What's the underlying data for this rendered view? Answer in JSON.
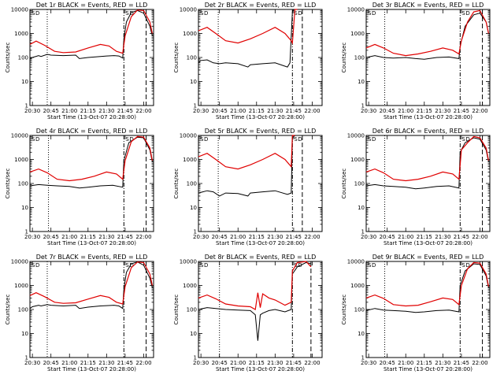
{
  "chart_data": [
    {
      "type": "line",
      "title": "Det 1r BLACK = Events, RED = LLD",
      "xlabel": "Start Time (13-Oct-07 20:28:00)",
      "ylabel": "Counts/sec",
      "log_y": true,
      "ylim": [
        1,
        10000
      ],
      "y_ticks": [
        "1",
        "10",
        "100",
        "1000",
        "10000"
      ],
      "x_ticks": [
        "20:30",
        "20:45",
        "21:00",
        "21:15",
        "21:30",
        "21:45",
        "22:00"
      ],
      "x_range": [
        "20:28",
        "22:08"
      ],
      "events_x": [
        "20:28",
        "20:30",
        "20:35",
        "20:37",
        "20:42",
        "20:45",
        "20:55",
        "21:05",
        "21:08",
        "21:15",
        "21:25",
        "21:30",
        "21:36",
        "21:40",
        "21:43",
        "21:44",
        "21:46",
        "21:50",
        "21:55",
        "22:00",
        "22:05",
        "22:07"
      ],
      "events_y": [
        90,
        100,
        120,
        110,
        135,
        125,
        120,
        125,
        90,
        100,
        110,
        115,
        120,
        115,
        95,
        600,
        3000,
        7500,
        9000,
        7000,
        2000,
        800
      ],
      "lld_x": [
        "20:28",
        "20:33",
        "20:40",
        "20:48",
        "20:55",
        "21:05",
        "21:15",
        "21:25",
        "21:32",
        "21:38",
        "21:43",
        "21:45",
        "21:50",
        "21:55",
        "22:00",
        "22:05",
        "22:07"
      ],
      "lld_y": [
        350,
        480,
        320,
        180,
        160,
        170,
        250,
        350,
        300,
        180,
        150,
        800,
        5000,
        9500,
        9000,
        3000,
        1000
      ],
      "dotted_lines_x": [
        "20:42"
      ],
      "dashdot_lines_x": [
        "21:44"
      ],
      "dashed_lines_x": [
        "22:02"
      ],
      "markers": [
        "S",
        "D"
      ]
    },
    {
      "type": "line",
      "title": "Det 2r BLACK = Events, RED = LLD",
      "xlabel": "Start Time (13-Oct-07 20:28:00)",
      "ylabel": "Counts/sec",
      "log_y": true,
      "ylim": [
        1,
        10000
      ],
      "y_ticks": [
        "1",
        "10",
        "100",
        "1000",
        "10000"
      ],
      "x_ticks": [
        "20:30",
        "20:45",
        "21:00",
        "21:15",
        "21:30",
        "21:45",
        "22:00"
      ],
      "x_range": [
        "20:28",
        "22:08"
      ],
      "events_x": [
        "20:28",
        "20:30",
        "20:35",
        "20:40",
        "20:45",
        "20:50",
        "21:00",
        "21:08",
        "21:10",
        "21:20",
        "21:30",
        "21:40",
        "21:42",
        "21:44",
        "21:45",
        "21:47"
      ],
      "events_y": [
        60,
        75,
        80,
        60,
        55,
        60,
        55,
        40,
        50,
        55,
        60,
        40,
        60,
        8000,
        10000,
        10000
      ],
      "lld_x": [
        "20:28",
        "20:35",
        "20:42",
        "20:50",
        "21:00",
        "21:10",
        "21:20",
        "21:30",
        "21:38",
        "21:43",
        "21:44",
        "21:46",
        "21:48"
      ],
      "lld_y": [
        1300,
        1800,
        1000,
        500,
        400,
        600,
        1000,
        1800,
        1000,
        500,
        400,
        10000,
        10000
      ],
      "dotted_lines_x": [
        "20:44"
      ],
      "dashdot_lines_x": [
        "21:44"
      ],
      "dashed_lines_x": [
        "21:52"
      ],
      "markers": [
        "S",
        "D"
      ]
    },
    {
      "type": "line",
      "title": "Det 3r BLACK = Events, RED = LLD",
      "xlabel": "Start Time (13-Oct-07 20:28:00)",
      "ylabel": "Counts/sec",
      "log_y": true,
      "ylim": [
        1,
        10000
      ],
      "y_ticks": [
        "1",
        "10",
        "100",
        "1000",
        "10000"
      ],
      "x_ticks": [
        "20:30",
        "20:45",
        "21:00",
        "21:15",
        "21:30",
        "21:45",
        "22:00"
      ],
      "x_range": [
        "20:28",
        "22:08"
      ],
      "events_x": [
        "20:28",
        "20:35",
        "20:42",
        "20:50",
        "21:00",
        "21:08",
        "21:15",
        "21:25",
        "21:35",
        "21:43",
        "21:44",
        "21:48",
        "21:55",
        "22:00",
        "22:05",
        "22:07"
      ],
      "events_y": [
        100,
        120,
        100,
        95,
        100,
        90,
        85,
        100,
        105,
        90,
        300,
        2000,
        6000,
        7000,
        3000,
        1000
      ],
      "lld_x": [
        "20:28",
        "20:35",
        "20:42",
        "20:50",
        "21:00",
        "21:10",
        "21:20",
        "21:30",
        "21:38",
        "21:43",
        "21:45",
        "21:50",
        "21:55",
        "22:00",
        "22:05",
        "22:07"
      ],
      "lld_y": [
        250,
        350,
        250,
        150,
        120,
        140,
        180,
        250,
        200,
        140,
        500,
        3000,
        8000,
        9000,
        3000,
        1000
      ],
      "dotted_lines_x": [
        "20:43"
      ],
      "dashdot_lines_x": [
        "21:44"
      ],
      "dashed_lines_x": [
        "22:02"
      ],
      "markers": [
        "S",
        "D"
      ]
    },
    {
      "type": "line",
      "title": "Det 4r BLACK = Events, RED = LLD",
      "xlabel": "Start Time (13-Oct-07 20:28:00)",
      "ylabel": "Counts/sec",
      "log_y": true,
      "ylim": [
        1,
        10000
      ],
      "y_ticks": [
        "1",
        "10",
        "100",
        "1000",
        "10000"
      ],
      "x_ticks": [
        "20:30",
        "20:45",
        "21:00",
        "21:15",
        "21:30",
        "21:45",
        "22:00"
      ],
      "x_range": [
        "20:28",
        "22:08"
      ],
      "events_x": [
        "20:28",
        "20:35",
        "20:42",
        "20:50",
        "21:00",
        "21:08",
        "21:15",
        "21:25",
        "21:35",
        "21:43",
        "21:44",
        "21:48",
        "21:55",
        "22:00",
        "22:05",
        "22:07"
      ],
      "events_y": [
        80,
        90,
        85,
        80,
        75,
        65,
        70,
        80,
        85,
        70,
        900,
        5000,
        8500,
        8000,
        2500,
        800
      ],
      "lld_x": [
        "20:28",
        "20:35",
        "20:42",
        "20:50",
        "21:00",
        "21:10",
        "21:20",
        "21:30",
        "21:38",
        "21:43",
        "21:45",
        "21:50",
        "21:55",
        "22:00",
        "22:05",
        "22:07"
      ],
      "lld_y": [
        300,
        400,
        280,
        150,
        130,
        150,
        200,
        300,
        250,
        150,
        900,
        5500,
        9000,
        8500,
        3000,
        900
      ],
      "dotted_lines_x": [
        "20:43"
      ],
      "dashdot_lines_x": [
        "21:44"
      ],
      "dashed_lines_x": [
        "22:02"
      ],
      "markers": [
        "S",
        "D"
      ]
    },
    {
      "type": "line",
      "title": "Det 5r BLACK = Events, RED = LLD",
      "xlabel": "Start Time (13-Oct-07 20:28:00)",
      "ylabel": "Counts/sec",
      "log_y": true,
      "ylim": [
        1,
        10000
      ],
      "y_ticks": [
        "1",
        "10",
        "100",
        "1000",
        "10000"
      ],
      "x_ticks": [
        "20:30",
        "20:45",
        "21:00",
        "21:15",
        "21:30",
        "21:45",
        "22:00"
      ],
      "x_range": [
        "20:28",
        "22:08"
      ],
      "events_x": [
        "20:28",
        "20:35",
        "20:40",
        "20:45",
        "20:50",
        "21:00",
        "21:08",
        "21:10",
        "21:20",
        "21:30",
        "21:40",
        "21:43",
        "21:44",
        "21:46"
      ],
      "events_y": [
        40,
        50,
        45,
        30,
        40,
        38,
        30,
        40,
        45,
        50,
        35,
        40,
        8000,
        10000
      ],
      "lld_x": [
        "20:28",
        "20:35",
        "20:42",
        "20:50",
        "21:00",
        "21:10",
        "21:20",
        "21:30",
        "21:38",
        "21:43",
        "21:44",
        "21:46"
      ],
      "lld_y": [
        1300,
        1800,
        1000,
        500,
        400,
        600,
        1000,
        1800,
        1000,
        500,
        10000,
        10000
      ],
      "dotted_lines_x": [
        "20:44"
      ],
      "dashdot_lines_x": [
        "21:44"
      ],
      "dashed_lines_x": [
        "21:52"
      ],
      "markers": [
        "S",
        "D"
      ]
    },
    {
      "type": "line",
      "title": "Det 6r BLACK = Events, RED = LLD",
      "xlabel": "Start Time (13-Oct-07 20:28:00)",
      "ylabel": "Counts/sec",
      "log_y": true,
      "ylim": [
        1,
        10000
      ],
      "y_ticks": [
        "1",
        "10",
        "100",
        "1000",
        "10000"
      ],
      "x_ticks": [
        "20:30",
        "20:45",
        "21:00",
        "21:15",
        "21:30",
        "21:45",
        "22:00"
      ],
      "x_range": [
        "20:28",
        "22:08"
      ],
      "events_x": [
        "20:28",
        "20:35",
        "20:42",
        "20:50",
        "21:00",
        "21:08",
        "21:15",
        "21:25",
        "21:35",
        "21:43",
        "21:44",
        "21:48",
        "21:55",
        "22:00",
        "22:05",
        "22:07"
      ],
      "events_y": [
        80,
        90,
        80,
        75,
        70,
        60,
        65,
        75,
        80,
        65,
        2000,
        5000,
        8000,
        7000,
        2500,
        800
      ],
      "lld_x": [
        "20:28",
        "20:35",
        "20:42",
        "20:50",
        "21:00",
        "21:10",
        "21:20",
        "21:30",
        "21:38",
        "21:43",
        "21:45",
        "21:50",
        "21:55",
        "22:00",
        "22:05",
        "22:07"
      ],
      "lld_y": [
        300,
        400,
        280,
        150,
        130,
        150,
        200,
        300,
        250,
        150,
        2500,
        5000,
        9000,
        8000,
        3000,
        900
      ],
      "dotted_lines_x": [
        "20:43"
      ],
      "dashdot_lines_x": [
        "21:44"
      ],
      "dashed_lines_x": [
        "22:02"
      ],
      "markers": [
        "S",
        "D"
      ]
    },
    {
      "type": "line",
      "title": "Det 7r BLACK = Events, RED = LLD",
      "xlabel": "Start Time (13-Oct-07 20:28:00)",
      "ylabel": "Counts/sec",
      "log_y": true,
      "ylim": [
        1,
        10000
      ],
      "y_ticks": [
        "1",
        "10",
        "100",
        "1000",
        "10000"
      ],
      "x_ticks": [
        "20:30",
        "20:45",
        "21:00",
        "21:15",
        "21:30",
        "21:45",
        "22:00"
      ],
      "x_range": [
        "20:28",
        "22:08"
      ],
      "events_x": [
        "20:28",
        "20:30",
        "20:35",
        "20:37",
        "20:42",
        "20:45",
        "20:55",
        "21:05",
        "21:08",
        "21:15",
        "21:25",
        "21:30",
        "21:36",
        "21:40",
        "21:43",
        "21:44",
        "21:46",
        "21:50",
        "21:55",
        "22:00",
        "22:05",
        "22:07"
      ],
      "events_y": [
        110,
        130,
        150,
        140,
        160,
        150,
        140,
        150,
        110,
        125,
        140,
        145,
        150,
        140,
        110,
        700,
        3500,
        8000,
        9500,
        7000,
        2000,
        800
      ],
      "lld_x": [
        "20:28",
        "20:33",
        "20:40",
        "20:48",
        "20:55",
        "21:05",
        "21:15",
        "21:25",
        "21:32",
        "21:38",
        "21:43",
        "21:45",
        "21:50",
        "21:55",
        "22:00",
        "22:05",
        "22:07"
      ],
      "lld_y": [
        380,
        500,
        340,
        200,
        180,
        190,
        270,
        380,
        320,
        200,
        170,
        900,
        5500,
        9500,
        9000,
        3000,
        1000
      ],
      "dotted_lines_x": [
        "20:42"
      ],
      "dashdot_lines_x": [
        "21:44"
      ],
      "dashed_lines_x": [
        "22:02"
      ],
      "markers": [
        "S",
        "D"
      ]
    },
    {
      "type": "line",
      "title": "Det 8r BLACK = Events, RED = LLD",
      "xlabel": "Start Time (13-Oct-07 20:28:00)",
      "ylabel": "Counts/sec",
      "log_y": true,
      "ylim": [
        1,
        10000
      ],
      "y_ticks": [
        "1",
        "10",
        "100",
        "1000",
        "10000"
      ],
      "x_ticks": [
        "20:30",
        "20:45",
        "21:00",
        "21:15",
        "21:30",
        "21:45",
        "22:00"
      ],
      "x_range": [
        "20:28",
        "22:08"
      ],
      "events_x": [
        "20:28",
        "20:35",
        "20:42",
        "20:50",
        "21:00",
        "21:10",
        "21:14",
        "21:16",
        "21:18",
        "21:20",
        "21:25",
        "21:30",
        "21:38",
        "21:43",
        "21:44",
        "21:48",
        "21:55",
        "21:59"
      ],
      "events_y": [
        100,
        120,
        110,
        100,
        95,
        90,
        60,
        5,
        60,
        70,
        90,
        100,
        80,
        100,
        3000,
        6000,
        9000,
        8000
      ],
      "lld_x": [
        "20:28",
        "20:35",
        "20:42",
        "20:50",
        "21:00",
        "21:10",
        "21:14",
        "21:16",
        "21:18",
        "21:20",
        "21:25",
        "21:30",
        "21:38",
        "21:43",
        "21:44",
        "21:48",
        "21:55",
        "21:59"
      ],
      "lld_y": [
        300,
        400,
        280,
        170,
        140,
        130,
        100,
        500,
        120,
        450,
        300,
        250,
        150,
        200,
        4000,
        9000,
        10000,
        6000
      ],
      "dotted_lines_x": [
        "20:45"
      ],
      "dashdot_lines_x": [
        "21:44"
      ],
      "dashed_lines_x": [
        "21:59"
      ],
      "markers": [
        "S",
        "D"
      ]
    },
    {
      "type": "line",
      "title": "Det 9r BLACK = Events, RED = LLD",
      "xlabel": "Start Time (13-Oct-07 20:28:00)",
      "ylabel": "Counts/sec",
      "log_y": true,
      "ylim": [
        1,
        10000
      ],
      "y_ticks": [
        "1",
        "10",
        "100",
        "1000",
        "10000"
      ],
      "x_ticks": [
        "20:30",
        "20:45",
        "21:00",
        "21:15",
        "21:30",
        "21:45",
        "22:00"
      ],
      "x_range": [
        "20:28",
        "22:08"
      ],
      "events_x": [
        "20:28",
        "20:35",
        "20:42",
        "20:50",
        "21:00",
        "21:08",
        "21:15",
        "21:25",
        "21:35",
        "21:43",
        "21:44",
        "21:48",
        "21:55",
        "22:00",
        "22:05",
        "22:07"
      ],
      "events_y": [
        90,
        110,
        95,
        90,
        85,
        75,
        80,
        90,
        95,
        80,
        1000,
        4000,
        8000,
        7500,
        2500,
        800
      ],
      "lld_x": [
        "20:28",
        "20:35",
        "20:42",
        "20:50",
        "21:00",
        "21:10",
        "21:20",
        "21:30",
        "21:38",
        "21:43",
        "21:45",
        "21:50",
        "21:55",
        "22:00",
        "22:05",
        "22:07"
      ],
      "lld_y": [
        300,
        400,
        290,
        160,
        140,
        150,
        210,
        300,
        260,
        160,
        1000,
        5000,
        9000,
        8500,
        3000,
        900
      ],
      "dotted_lines_x": [
        "20:43"
      ],
      "dashdot_lines_x": [
        "21:44"
      ],
      "dashed_lines_x": [
        "22:02"
      ],
      "markers": [
        "S",
        "D"
      ]
    }
  ]
}
